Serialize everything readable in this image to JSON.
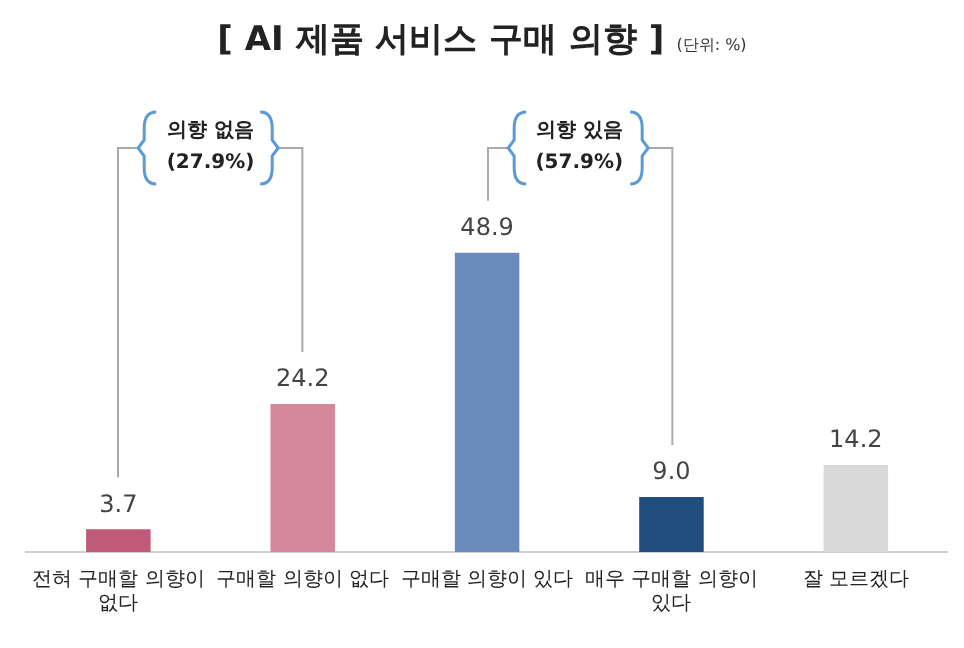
{
  "chart_data": {
    "type": "bar",
    "title": "[ AI 제품 서비스 구매 의향 ]",
    "subtitle": "(단위: %)",
    "categories": [
      "전혀 구매할 의향이 없다",
      "구매할 의향이 없다",
      "구매할 의향이 있다",
      "매우 구매할 의향이 있다",
      "잘 모르겠다"
    ],
    "values": [
      3.7,
      24.2,
      48.9,
      9.0,
      14.2
    ],
    "colors": [
      "#c05a78",
      "#d4899b",
      "#6a8cbc",
      "#1f4e7d",
      "#d9d9d9"
    ],
    "value_labels": [
      "3.7",
      "24.2",
      "48.9",
      "9.0",
      "14.2"
    ],
    "annotations": [
      "의향 없음 (27.9%)",
      "의향 있음 (57.9%)"
    ],
    "grid": false,
    "legend": false
  }
}
